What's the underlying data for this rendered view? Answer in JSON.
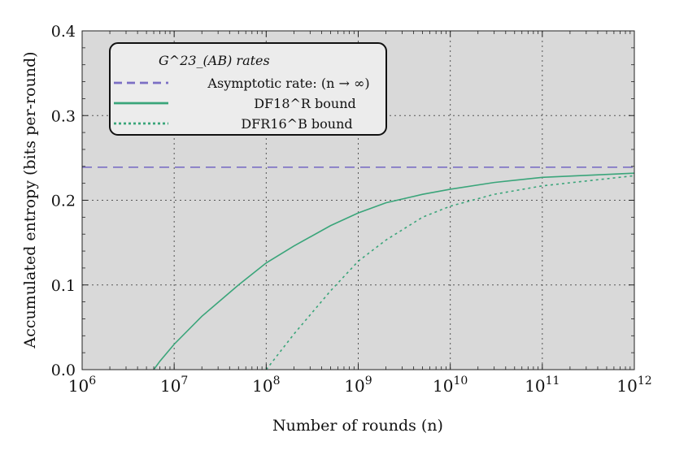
{
  "chart_data": {
    "type": "line",
    "title": "",
    "xlabel": "Number of rounds (n)",
    "ylabel": "Accumulated entropy (bits per-round)",
    "xscale": "log",
    "xlim": [
      1000000,
      1000000000000
    ],
    "ylim": [
      0,
      0.4
    ],
    "grid": true,
    "background": "#d9d9d9",
    "legend_placement": "top-left",
    "legend_title": "G^23_(AB) rates",
    "x_ticks": [
      {
        "base": "10",
        "exp": "6"
      },
      {
        "base": "10",
        "exp": "7"
      },
      {
        "base": "10",
        "exp": "8"
      },
      {
        "base": "10",
        "exp": "9"
      },
      {
        "base": "10",
        "exp": "10"
      },
      {
        "base": "10",
        "exp": "11"
      },
      {
        "base": "10",
        "exp": "12"
      }
    ],
    "y_ticks": [
      "0.0",
      "0.1",
      "0.2",
      "0.3",
      "0.4"
    ],
    "series": [
      {
        "name": "Asymptotic rate: (n → ∞)",
        "style": "dashed",
        "color": "#7b6fc4",
        "x": [
          1000000,
          1000000000000
        ],
        "y": [
          0.239,
          0.239
        ]
      },
      {
        "name": "DF18^R bound",
        "style": "solid",
        "color": "#3aa57a",
        "x": [
          6000000,
          7000000,
          10000000,
          20000000,
          50000000,
          100000000,
          200000000,
          500000000,
          1000000000,
          2000000000,
          5000000000,
          10000000000,
          30000000000,
          100000000000,
          1000000000000
        ],
        "y": [
          0.0,
          0.01,
          0.03,
          0.063,
          0.1,
          0.126,
          0.146,
          0.17,
          0.185,
          0.197,
          0.207,
          0.213,
          0.221,
          0.227,
          0.232
        ]
      },
      {
        "name": "DFR16^B bound",
        "style": "dotted",
        "color": "#3aa57a",
        "x": [
          100000000,
          200000000,
          500000000,
          1000000000,
          2000000000,
          5000000000,
          10000000000,
          30000000000,
          100000000000,
          1000000000000
        ],
        "y": [
          0.0,
          0.042,
          0.093,
          0.128,
          0.153,
          0.18,
          0.193,
          0.207,
          0.217,
          0.229
        ]
      }
    ]
  }
}
